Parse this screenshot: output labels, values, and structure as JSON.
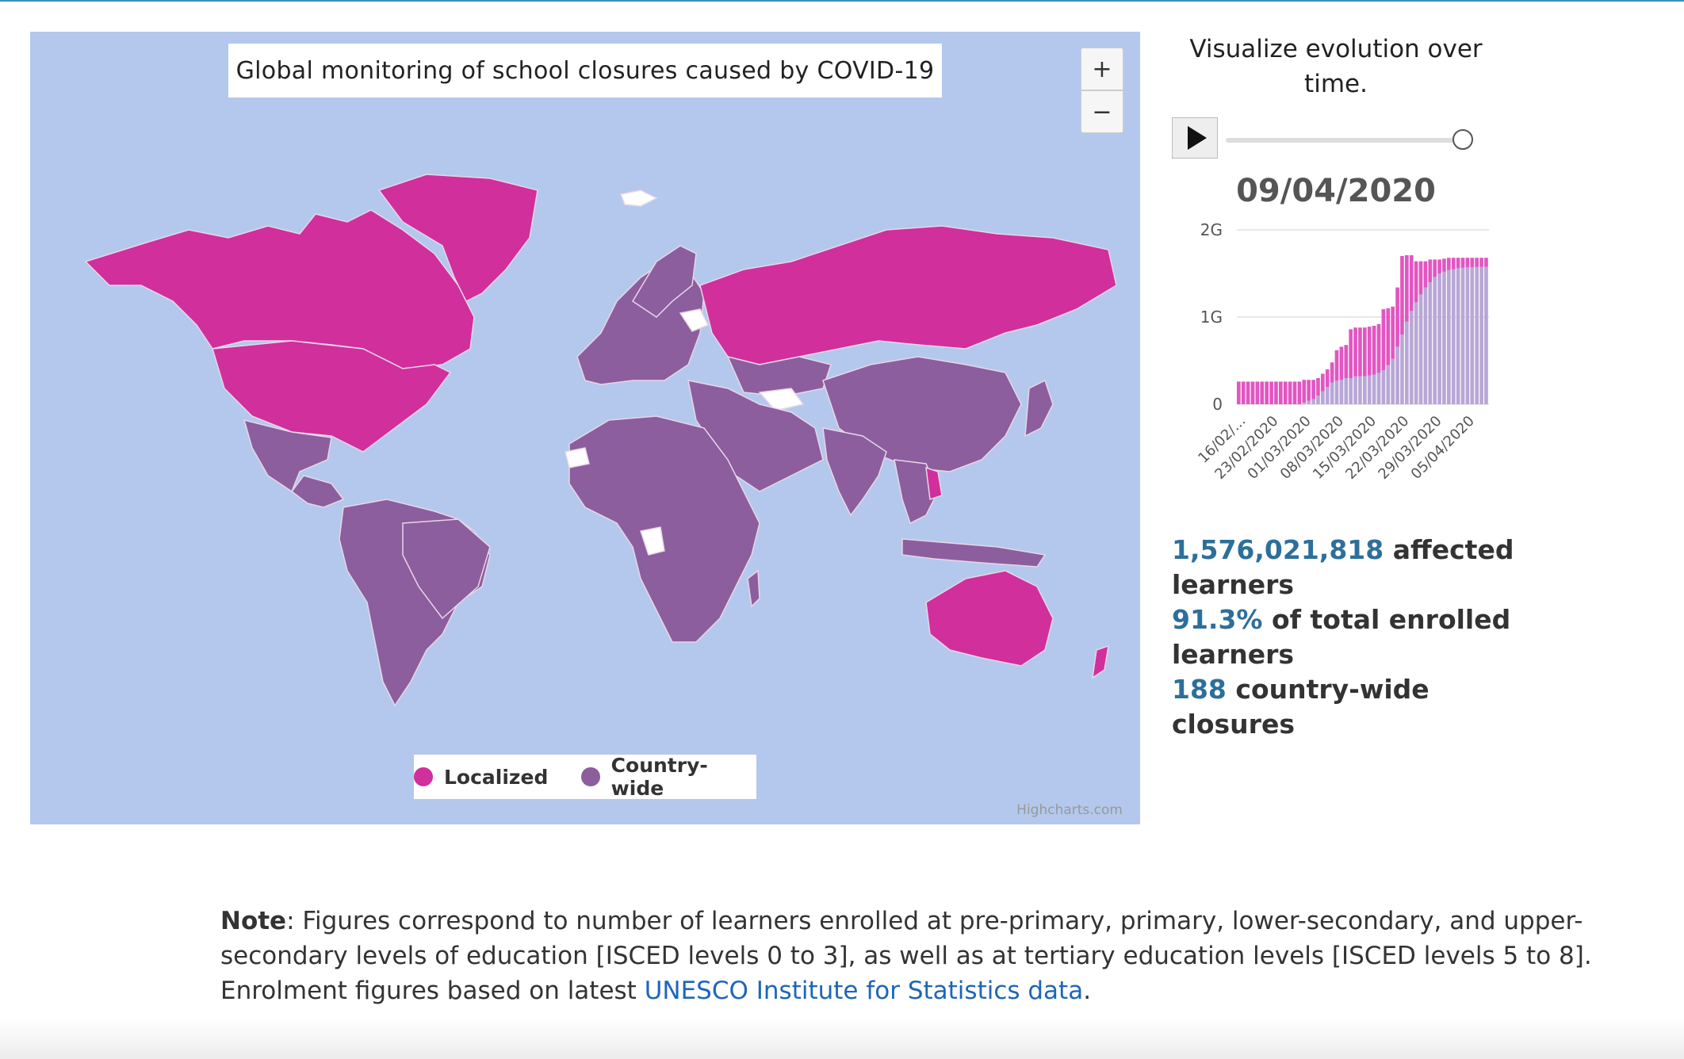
{
  "colors": {
    "localized": "#d02f9c",
    "country_wide": "#8c5e9e",
    "no_closure": "#ffffff",
    "ocean": "#b3c8ec",
    "accent_number": "#2d6f9b",
    "link": "#1e66b8"
  },
  "map": {
    "title": "Global monitoring of school closures caused by COVID-19",
    "zoom_in_label": "+",
    "zoom_out_label": "−",
    "legend": [
      {
        "label": "Localized"
      },
      {
        "label": "Country-wide"
      }
    ],
    "credits": "Highcharts.com"
  },
  "timeline": {
    "title": "Visualize evolution over time.",
    "play_icon": "play-icon",
    "slider_position": 1.0,
    "current_date": "09/04/2020"
  },
  "chart_data": {
    "type": "bar",
    "stacked": true,
    "yticks": [
      "0",
      "1G",
      "2G"
    ],
    "ylim": [
      0,
      2000000000
    ],
    "xtick_labels": [
      "16/02/...",
      "23/02/2020",
      "01/03/2020",
      "08/03/2020",
      "15/03/2020",
      "22/03/2020",
      "29/03/2020",
      "05/04/2020"
    ],
    "series": [
      {
        "name": "Country-wide",
        "color": "#b8a7d6",
        "values": [
          0,
          0,
          0,
          0,
          0,
          0,
          0,
          0,
          0,
          0,
          0,
          0,
          0,
          0,
          0.02,
          0.04,
          0.06,
          0.1,
          0.15,
          0.2,
          0.25,
          0.27,
          0.28,
          0.3,
          0.3,
          0.32,
          0.32,
          0.32,
          0.33,
          0.34,
          0.36,
          0.39,
          0.45,
          0.52,
          0.66,
          0.8,
          0.95,
          1.07,
          1.17,
          1.26,
          1.34,
          1.4,
          1.46,
          1.5,
          1.52,
          1.54,
          1.55,
          1.56,
          1.565,
          1.57,
          1.572,
          1.574,
          1.575,
          1.576
        ]
      },
      {
        "name": "Localized",
        "color": "#e256c2",
        "values": [
          0.26,
          0.26,
          0.26,
          0.26,
          0.26,
          0.26,
          0.26,
          0.26,
          0.26,
          0.26,
          0.26,
          0.26,
          0.26,
          0.26,
          0.26,
          0.24,
          0.22,
          0.2,
          0.2,
          0.2,
          0.23,
          0.35,
          0.38,
          0.38,
          0.56,
          0.56,
          0.56,
          0.56,
          0.56,
          0.56,
          0.56,
          0.7,
          0.65,
          0.6,
          0.68,
          0.9,
          0.76,
          0.64,
          0.47,
          0.38,
          0.3,
          0.26,
          0.2,
          0.16,
          0.15,
          0.14,
          0.13,
          0.12,
          0.115,
          0.11,
          0.108,
          0.106,
          0.105,
          0.104
        ]
      }
    ]
  },
  "stats": {
    "learners_value": "1,576,021,818",
    "learners_label": " affected learners",
    "percent_value": "91.3%",
    "percent_label": " of total enrolled learners",
    "closures_value": "188",
    "closures_label": " country-wide closures"
  },
  "note": {
    "bold": "Note",
    "text": ": Figures correspond to number of learners enrolled at pre-primary, primary, lower-secondary, and upper-secondary levels of education [ISCED levels 0 to 3], as well as at tertiary education levels [ISCED levels 5 to 8]. Enrolment figures based on latest ",
    "link_text": "UNESCO Institute for Statistics data",
    "end": "."
  }
}
